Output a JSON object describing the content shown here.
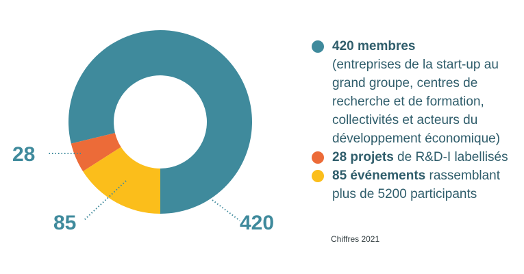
{
  "colors": {
    "teal": "#3f8a9c",
    "orange": "#ec6b38",
    "yellow": "#fbbe1b",
    "callout_text": "#3f8a9c",
    "legend_text": "#2f5d6b"
  },
  "chart_data": {
    "type": "pie",
    "donut": true,
    "slices": [
      {
        "label": "420",
        "value": 420,
        "color": "#3f8a9c"
      },
      {
        "label": "28",
        "value": 28,
        "color": "#ec6b38"
      },
      {
        "label": "85",
        "value": 85,
        "color": "#fbbe1b"
      }
    ],
    "legend_placement": "right"
  },
  "legend": {
    "items": [
      {
        "strong": "420 membres",
        "detail": "(entreprises de la start-up au grand groupe, centres de recherche et de formation, collectivités et acteurs du développement économique)",
        "color": "#3f8a9c"
      },
      {
        "strong": "28 projets",
        "detail": " de R&D-I labellisés",
        "color": "#ec6b38"
      },
      {
        "strong": "85 événements",
        "detail": " rassemblant plus de 5200 participants",
        "color": "#fbbe1b"
      }
    ]
  },
  "footnote": "Chiffres 2021"
}
